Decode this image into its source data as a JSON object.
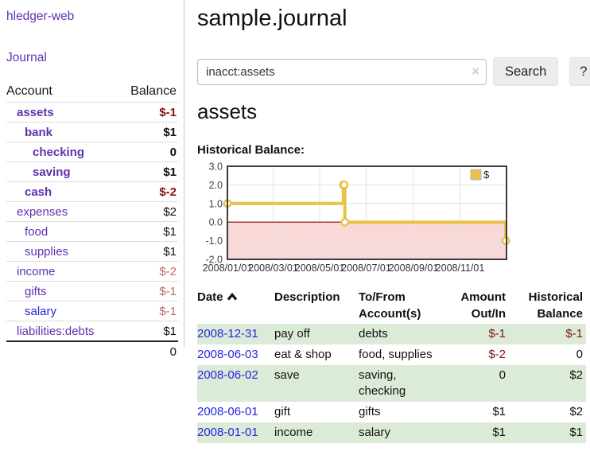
{
  "window": {
    "title": "sample.journal"
  },
  "sidebar": {
    "brand": "hledger-web",
    "nav": [
      {
        "label": "Journal"
      }
    ],
    "accounts_table": {
      "headers": {
        "account": "Account",
        "balance": "Balance"
      },
      "rows": [
        {
          "name": "assets",
          "balance": "$-1",
          "depth": 1,
          "in_account": true
        },
        {
          "name": "bank",
          "balance": "$1",
          "depth": 2,
          "in_account": true
        },
        {
          "name": "checking",
          "balance": "0",
          "depth": 3,
          "in_account": true
        },
        {
          "name": "saving",
          "balance": "$1",
          "depth": 3,
          "in_account": true
        },
        {
          "name": "cash",
          "balance": "$-2",
          "depth": 2,
          "in_account": true
        },
        {
          "name": "expenses",
          "balance": "$2",
          "depth": 1,
          "in_account": false
        },
        {
          "name": "food",
          "balance": "$1",
          "depth": 2,
          "in_account": false
        },
        {
          "name": "supplies",
          "balance": "$1",
          "depth": 2,
          "in_account": false
        },
        {
          "name": "income",
          "balance": "$-2",
          "depth": 1,
          "in_account": false
        },
        {
          "name": "gifts",
          "balance": "$-1",
          "depth": 2,
          "in_account": false
        },
        {
          "name": "salary",
          "balance": "$-1",
          "depth": 2,
          "in_account": false
        },
        {
          "name": "liabilities:debts",
          "balance": "$1",
          "depth": 1,
          "in_account": false
        }
      ],
      "total": "0"
    }
  },
  "search": {
    "value": "inacct:assets",
    "clear_icon": "×",
    "button_label": "Search",
    "help_label": "?"
  },
  "account_page": {
    "heading": "assets",
    "chart_label": "Historical Balance:"
  },
  "chart_data": {
    "type": "line",
    "step": true,
    "title": "Historical Balance:",
    "series": [
      {
        "name": "$",
        "color": "#e8c24a",
        "points": [
          [
            "2008-01-01",
            1
          ],
          [
            "2008-06-01",
            2
          ],
          [
            "2008-06-02",
            2
          ],
          [
            "2008-06-03",
            0
          ],
          [
            "2008-12-31",
            -1
          ]
        ]
      }
    ],
    "xlim": [
      "2008-01-01",
      "2009-01-01"
    ],
    "ylim": [
      -2.0,
      3.0
    ],
    "y_ticks": [
      {
        "v": 3.0,
        "label": "3.0"
      },
      {
        "v": 2.0,
        "label": "2.0"
      },
      {
        "v": 1.0,
        "label": "1.0"
      },
      {
        "v": 0.0,
        "label": "0.0"
      },
      {
        "v": -1.0,
        "label": "-1.0"
      },
      {
        "v": -2.0,
        "label": "-2.0"
      }
    ],
    "x_ticks": [
      {
        "d": "2008-01-01",
        "label": "2008/01/01"
      },
      {
        "d": "2008-03-01",
        "label": "2008/03/01"
      },
      {
        "d": "2008-05-01",
        "label": "2008/05/01"
      },
      {
        "d": "2008-07-01",
        "label": "2008/07/01"
      },
      {
        "d": "2008-09-01",
        "label": "2008/09/01"
      },
      {
        "d": "2008-11-01",
        "label": "2008/11/01"
      }
    ],
    "legend": {
      "position": "top-right",
      "entries": [
        {
          "label": "$",
          "color": "#e8c24a"
        }
      ]
    },
    "grid": true,
    "negative_region_color": "#f9d8d8",
    "zero_line_color": "#8b0000",
    "plot_border_color": "#3c3c3c"
  },
  "register": {
    "headers": {
      "date": "Date",
      "description": "Description",
      "tofrom": [
        "To/From",
        "Account(s)"
      ],
      "amount": [
        "Amount",
        "Out/In"
      ],
      "balance": [
        "Historical",
        "Balance"
      ]
    },
    "sort": {
      "column": "date",
      "direction": "ascending"
    },
    "rows": [
      {
        "date": "2008-12-31",
        "description": "pay off",
        "accounts": "debts",
        "amount": "$-1",
        "balance": "$-1"
      },
      {
        "date": "2008-06-03",
        "description": "eat & shop",
        "accounts": "food, supplies",
        "amount": "$-2",
        "balance": "0"
      },
      {
        "date": "2008-06-02",
        "description": "save",
        "accounts": "saving, checking",
        "amount": "0",
        "balance": "$2"
      },
      {
        "date": "2008-06-01",
        "description": "gift",
        "accounts": "gifts",
        "amount": "$1",
        "balance": "$2"
      },
      {
        "date": "2008-01-01",
        "description": "income",
        "accounts": "salary",
        "amount": "$1",
        "balance": "$1"
      }
    ]
  },
  "colors": {
    "link_purple": "#6030ae",
    "link_blue": "#2428dd",
    "negative_strong": "#861414",
    "negative_muted": "#bc6c6c",
    "row_green": "#dcead8",
    "chart_gold": "#e8c24a",
    "chart_negative_region": "#f9d8d8",
    "chart_zero_line": "#8b0000"
  }
}
